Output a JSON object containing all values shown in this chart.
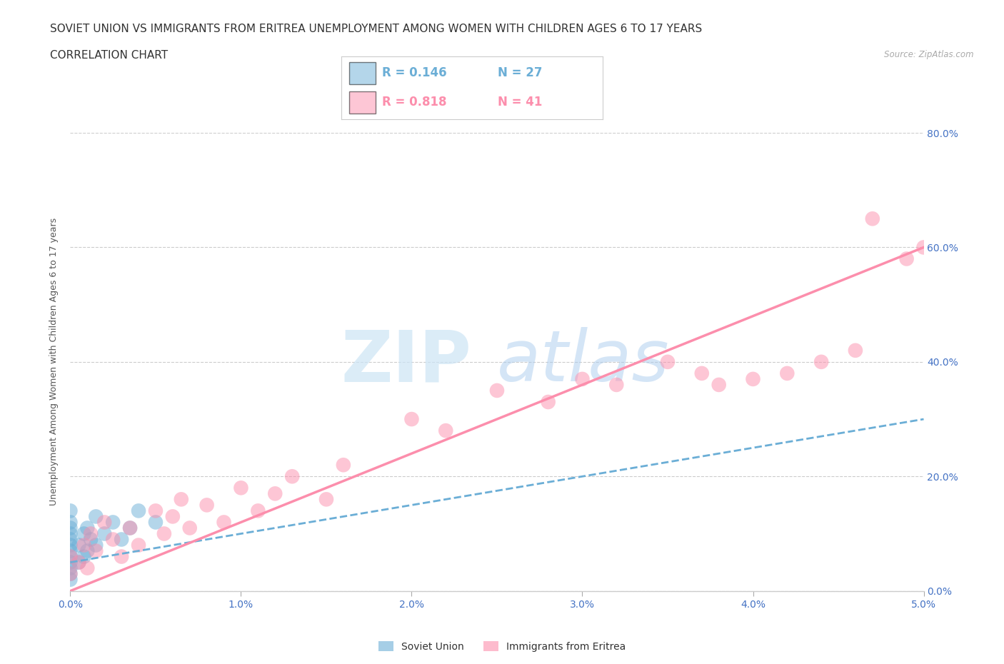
{
  "title_line1": "SOVIET UNION VS IMMIGRANTS FROM ERITREA UNEMPLOYMENT AMONG WOMEN WITH CHILDREN AGES 6 TO 17 YEARS",
  "title_line2": "CORRELATION CHART",
  "source_text": "Source: ZipAtlas.com",
  "xlabel_vals": [
    0.0,
    1.0,
    2.0,
    3.0,
    4.0,
    5.0
  ],
  "ylabel_vals": [
    0.0,
    20.0,
    40.0,
    60.0,
    80.0
  ],
  "ylabel_label": "Unemployment Among Women with Children Ages 6 to 17 years",
  "xlim": [
    0.0,
    5.0
  ],
  "ylim": [
    0.0,
    80.0
  ],
  "soviet_color": "#6baed6",
  "eritrea_color": "#fc8eac",
  "soviet_R": 0.146,
  "soviet_N": 27,
  "eritrea_R": 0.818,
  "eritrea_N": 41,
  "soviet_scatter_x": [
    0.0,
    0.0,
    0.0,
    0.0,
    0.0,
    0.0,
    0.0,
    0.0,
    0.0,
    0.0,
    0.0,
    0.0,
    0.05,
    0.05,
    0.08,
    0.08,
    0.1,
    0.1,
    0.12,
    0.15,
    0.15,
    0.2,
    0.25,
    0.3,
    0.35,
    0.4,
    0.5
  ],
  "soviet_scatter_y": [
    2.0,
    3.0,
    4.0,
    5.0,
    6.0,
    7.0,
    8.0,
    9.0,
    10.0,
    11.0,
    12.0,
    14.0,
    5.0,
    8.0,
    6.0,
    10.0,
    7.0,
    11.0,
    9.0,
    8.0,
    13.0,
    10.0,
    12.0,
    9.0,
    11.0,
    14.0,
    12.0
  ],
  "eritrea_scatter_x": [
    0.0,
    0.0,
    0.05,
    0.08,
    0.1,
    0.12,
    0.15,
    0.2,
    0.25,
    0.3,
    0.35,
    0.4,
    0.5,
    0.55,
    0.6,
    0.65,
    0.7,
    0.8,
    0.9,
    1.0,
    1.1,
    1.2,
    1.3,
    1.5,
    1.6,
    2.0,
    2.2,
    2.5,
    2.8,
    3.0,
    3.2,
    3.5,
    3.7,
    3.8,
    4.0,
    4.2,
    4.4,
    4.6,
    4.7,
    4.9,
    5.0
  ],
  "eritrea_scatter_y": [
    3.0,
    6.0,
    5.0,
    8.0,
    4.0,
    10.0,
    7.0,
    12.0,
    9.0,
    6.0,
    11.0,
    8.0,
    14.0,
    10.0,
    13.0,
    16.0,
    11.0,
    15.0,
    12.0,
    18.0,
    14.0,
    17.0,
    20.0,
    16.0,
    22.0,
    30.0,
    28.0,
    35.0,
    33.0,
    37.0,
    36.0,
    40.0,
    38.0,
    36.0,
    37.0,
    38.0,
    40.0,
    42.0,
    65.0,
    58.0,
    60.0
  ],
  "soviet_regline_x": [
    0.0,
    5.0
  ],
  "soviet_regline_y": [
    5.0,
    30.0
  ],
  "eritrea_regline_x": [
    0.0,
    5.0
  ],
  "eritrea_regline_y": [
    0.0,
    60.0
  ],
  "watermark_zip": "ZIP",
  "watermark_atlas": "atlas",
  "background_color": "#ffffff",
  "grid_color": "#cccccc",
  "axis_color": "#4472c4",
  "title_fontsize": 11,
  "tick_fontsize": 10
}
